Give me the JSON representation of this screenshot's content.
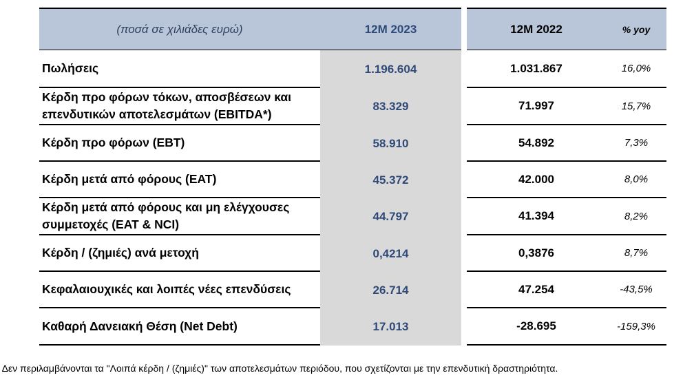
{
  "header": {
    "label": "(ποσά σε χιλιάδες ευρώ)",
    "col2023": "12M 2023",
    "col2022": "12M 2022",
    "yoy": "% yoy"
  },
  "rows": [
    [
      "Πωλήσεις",
      "1.196.604",
      "1.031.867",
      "16,0%"
    ],
    [
      "Κέρδη προ φόρων τόκων, αποσβέσεων και επενδυτικών αποτελεσμάτων (EBITDA*)",
      "83.329",
      "71.997",
      "15,7%"
    ],
    [
      "Κέρδη προ φόρων (EBT)",
      "58.910",
      "54.892",
      "7,3%"
    ],
    [
      "Κέρδη μετά από φόρους (EAT)",
      "45.372",
      "42.000",
      "8,0%"
    ],
    [
      "Κέρδη μετά από φόρους και μη ελέγχουσες συμμετοχές (EAT & NCI)",
      "44.797",
      "41.394",
      "8,2%"
    ],
    [
      "Κέρδη / (ζημιές) ανά μετοχή",
      "0,4214",
      "0,3876",
      "8,7%"
    ],
    [
      "Κεφαλαιουχικές και λοιπές νέες επενδύσεις",
      "26.714",
      "47.254",
      "-43,5%"
    ],
    [
      "Καθαρή Δανειακή Θέση (Net Debt)",
      "17.013",
      "-28.695",
      "-159,3%"
    ]
  ],
  "footnote": "* Δεν περιλαμβάνονται τα \"Λοιπά κέρδη / (ζημιές)\" των αποτελεσμάτων περιόδου, που σχετίζονται με την επενδυτική δραστηριότητα."
}
